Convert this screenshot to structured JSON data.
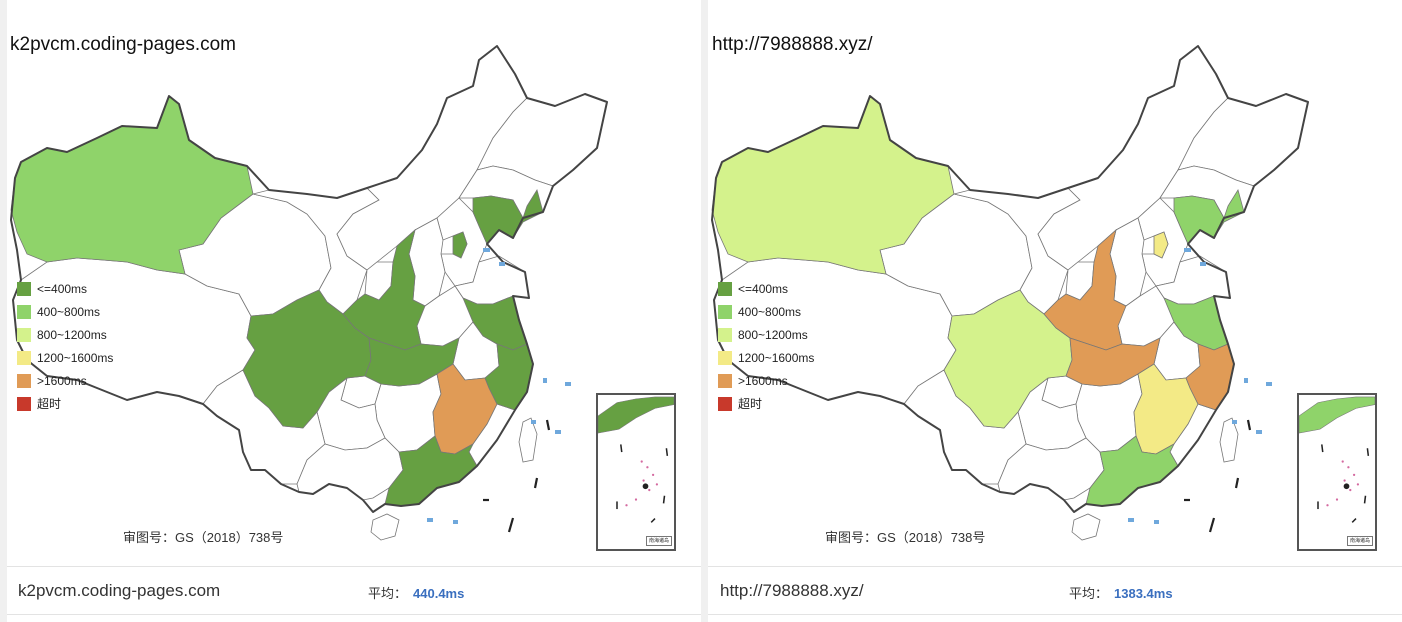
{
  "colors": {
    "lt400": "#66a042",
    "r400_800": "#8fd36a",
    "r800_1200": "#d4f28c",
    "r1200_1600": "#f3ea86",
    "gt1600": "#e09b56",
    "timeout": "#c8392b",
    "nodata": "#ffffff"
  },
  "legend": [
    {
      "label": "<=400ms",
      "color_key": "lt400"
    },
    {
      "label": "400~800ms",
      "color_key": "r400_800"
    },
    {
      "label": "800~1200ms",
      "color_key": "r800_1200"
    },
    {
      "label": "1200~1600ms",
      "color_key": "r1200_1600"
    },
    {
      "label": ">1600ms",
      "color_key": "gt1600"
    },
    {
      "label": "超时",
      "color_key": "timeout"
    }
  ],
  "panels": [
    {
      "site": "k2pvcm.coding-pages.com",
      "approval": "审图号：GS（2018）738号",
      "avg_label": "平均：",
      "avg_value": "440.4ms",
      "regions": {
        "xinjiang": "r400_800",
        "sichuan": "lt400",
        "shaanxi": "lt400",
        "hubei": "lt400",
        "jiangxi": "gt1600",
        "guangdong": "lt400",
        "jiangsu": "lt400",
        "zhejiang": "lt400",
        "liaoning": "lt400",
        "beijing": "lt400",
        "inset_coast": "lt400"
      }
    },
    {
      "site": "http://7988888.xyz/",
      "approval": "审图号：GS（2018）738号",
      "avg_label": "平均：",
      "avg_value": "1383.4ms",
      "regions": {
        "xinjiang": "r800_1200",
        "sichuan": "r800_1200",
        "shaanxi": "gt1600",
        "hubei": "gt1600",
        "jiangxi": "r1200_1600",
        "guangdong": "r400_800",
        "jiangsu": "r400_800",
        "zhejiang": "gt1600",
        "liaoning": "r400_800",
        "beijing": "r1200_1600",
        "inset_coast": "r400_800"
      }
    }
  ]
}
